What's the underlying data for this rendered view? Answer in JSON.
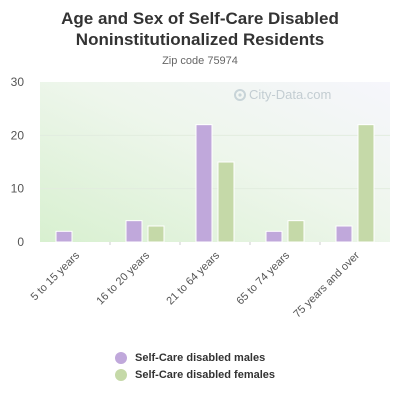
{
  "chart_data": {
    "type": "bar",
    "title": "Age and Sex of Self-Care Disabled Noninstitutionalized Residents",
    "subtitle": "Zip code 75974",
    "categories": [
      "5 to 15 years",
      "16 to 20 years",
      "21 to 64 years",
      "65 to 74 years",
      "75 years and over"
    ],
    "series": [
      {
        "name": "Self-Care disabled males",
        "values": [
          2,
          4,
          22,
          2,
          3
        ],
        "color": "#c0a8db"
      },
      {
        "name": "Self-Care disabled females",
        "values": [
          0,
          3,
          15,
          4,
          22
        ],
        "color": "#c5d9a8"
      }
    ],
    "ylim": [
      0,
      30
    ],
    "yticks": [
      0,
      10,
      20,
      30
    ],
    "grid": true,
    "legend": "bottom",
    "watermark": "City-Data.com"
  }
}
